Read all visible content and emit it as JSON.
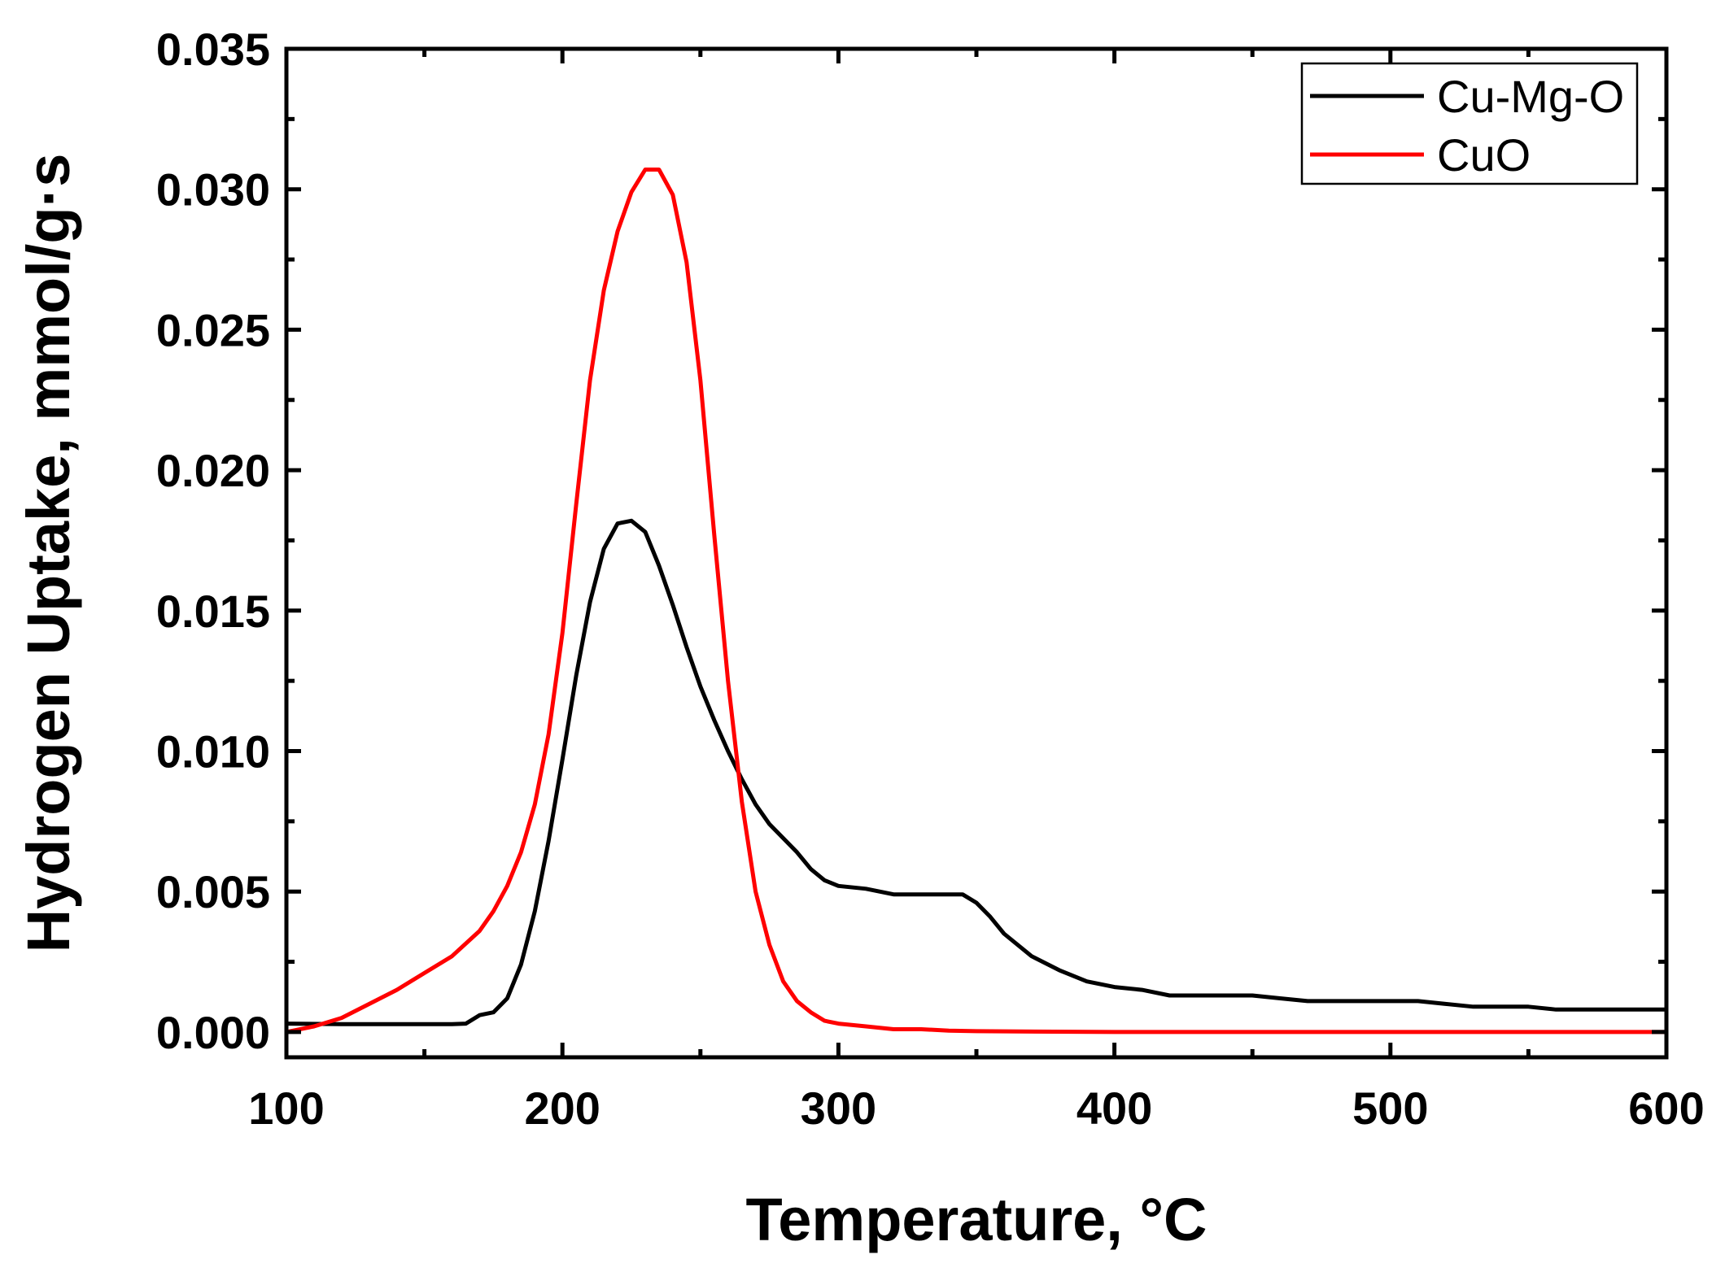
{
  "chart_data": {
    "type": "line",
    "title": "",
    "xlabel": "Temperature, °C",
    "ylabel": "Hydrogen Uptake, mmol/g·s",
    "xlim": [
      100,
      600
    ],
    "ylim": [
      -0.0009,
      0.035
    ],
    "xticks": [
      100,
      200,
      300,
      400,
      500,
      600
    ],
    "xtick_labels": [
      "100",
      "200",
      "300",
      "400",
      "500",
      "600"
    ],
    "yticks": [
      0.0,
      0.005,
      0.01,
      0.015,
      0.02,
      0.025,
      0.03,
      0.035
    ],
    "ytick_labels": [
      "0.000",
      "0.005",
      "0.010",
      "0.015",
      "0.020",
      "0.025",
      "0.030",
      "0.035"
    ],
    "grid": false,
    "legend_position": "top-right",
    "series": [
      {
        "name": "Cu-Mg-O",
        "color": "#000000",
        "x": [
          100,
          120,
          140,
          160,
          165,
          170,
          175,
          180,
          185,
          190,
          195,
          200,
          205,
          210,
          215,
          220,
          225,
          230,
          235,
          240,
          245,
          250,
          255,
          260,
          265,
          270,
          275,
          280,
          285,
          290,
          295,
          300,
          310,
          320,
          330,
          340,
          345,
          350,
          355,
          360,
          370,
          380,
          390,
          400,
          410,
          420,
          430,
          440,
          450,
          460,
          470,
          480,
          490,
          500,
          510,
          520,
          530,
          540,
          550,
          560,
          570,
          580,
          590,
          600
        ],
        "y": [
          0.0003,
          0.00028,
          0.00028,
          0.00028,
          0.0003,
          0.0006,
          0.0007,
          0.0012,
          0.0024,
          0.0043,
          0.0068,
          0.0097,
          0.0127,
          0.0153,
          0.0172,
          0.0181,
          0.0182,
          0.0178,
          0.0166,
          0.0152,
          0.0137,
          0.0123,
          0.0111,
          0.01,
          0.009,
          0.0081,
          0.0074,
          0.0069,
          0.0064,
          0.0058,
          0.0054,
          0.0052,
          0.0051,
          0.0049,
          0.0049,
          0.0049,
          0.0049,
          0.0046,
          0.0041,
          0.0035,
          0.0027,
          0.0022,
          0.0018,
          0.0016,
          0.0015,
          0.0013,
          0.0013,
          0.0013,
          0.0013,
          0.0012,
          0.0011,
          0.0011,
          0.0011,
          0.0011,
          0.0011,
          0.001,
          0.0009,
          0.0009,
          0.0009,
          0.0008,
          0.0008,
          0.0008,
          0.0008,
          0.0008
        ]
      },
      {
        "name": "CuO",
        "color": "#ff0000",
        "x": [
          100,
          110,
          120,
          130,
          140,
          150,
          160,
          170,
          175,
          180,
          185,
          190,
          195,
          200,
          205,
          210,
          215,
          220,
          225,
          230,
          235,
          240,
          245,
          250,
          255,
          260,
          265,
          270,
          275,
          280,
          285,
          290,
          295,
          300,
          310,
          320,
          330,
          340,
          350,
          400,
          450,
          500,
          550,
          600
        ],
        "y": [
          0.0,
          0.0002,
          0.0005,
          0.001,
          0.0015,
          0.0021,
          0.0027,
          0.0036,
          0.0043,
          0.0052,
          0.0064,
          0.0081,
          0.0106,
          0.0142,
          0.0188,
          0.0232,
          0.0264,
          0.0285,
          0.0299,
          0.0307,
          0.0307,
          0.0298,
          0.0274,
          0.0232,
          0.0177,
          0.0125,
          0.0082,
          0.005,
          0.0031,
          0.0018,
          0.0011,
          0.0007,
          0.0004,
          0.0003,
          0.0002,
          0.0001,
          0.0001,
          5e-05,
          3e-05,
          0.0,
          0.0,
          0.0,
          0.0,
          0.0
        ]
      }
    ]
  }
}
